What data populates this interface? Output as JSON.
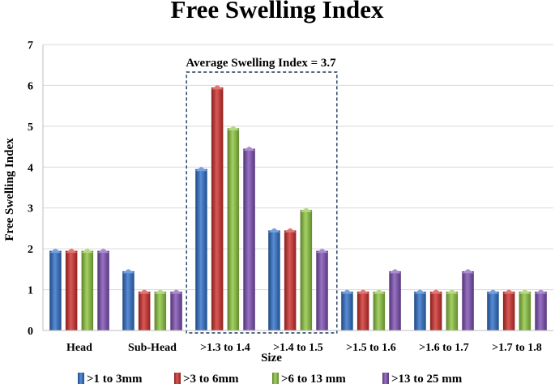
{
  "chart_data": {
    "type": "bar",
    "title": "Free Swelling Index",
    "xlabel": "Size",
    "ylabel": "Free Swelling Index",
    "ylim": [
      0,
      7
    ],
    "yticks": [
      0,
      1,
      2,
      3,
      4,
      5,
      6,
      7
    ],
    "grid": true,
    "legend_position": "bottom",
    "categories": [
      "Head",
      "Sub-Head",
      ">1.3 to 1.4",
      ">1.4 to 1.5",
      ">1.5 to 1.6",
      ">1.6 to 1.7",
      ">1.7 to 1.8"
    ],
    "series": [
      {
        "name": ">1 to 3mm",
        "color": "#2E6FC9",
        "values": [
          2,
          1.5,
          4,
          2.5,
          1,
          1,
          1
        ]
      },
      {
        "name": ">3 to 6mm",
        "color": "#D02E2B",
        "values": [
          2,
          1,
          6,
          2.5,
          1,
          1,
          1
        ]
      },
      {
        "name": ">6 to 13 mm",
        "color": "#8DC63F",
        "values": [
          2,
          1,
          5,
          3,
          1,
          1,
          1
        ]
      },
      {
        "name": ">13 to 25 mm",
        "color": "#7E4FB4",
        "values": [
          2,
          1,
          4.5,
          2,
          1.5,
          1.5,
          1
        ]
      }
    ],
    "annotation": {
      "text": "Average Swelling Index = 3.7",
      "box_around_categories": [
        ">1.3 to 1.4",
        ">1.4 to 1.5"
      ],
      "box_color": "#1F3A5A"
    }
  }
}
